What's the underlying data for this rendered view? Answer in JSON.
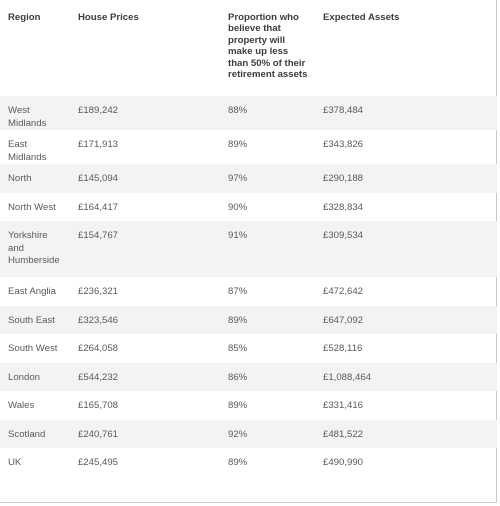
{
  "table": {
    "headers": [
      "Region",
      "House Prices",
      "Proportion who believe that property will make up less than 50% of their retirement assets",
      "Expected Assets"
    ],
    "rows": [
      [
        "West Midlands",
        "£189,242",
        "88%",
        "£378,484"
      ],
      [
        "East Midlands",
        "£171,913",
        "89%",
        "£343,826"
      ],
      [
        "North",
        "£145,094",
        "97%",
        "£290,188"
      ],
      [
        "North West",
        "£164,417",
        "90%",
        "£328,834"
      ],
      [
        "Yorkshire and Humberside",
        "£154,767",
        "91%",
        "£309,534"
      ],
      [
        "East Anglia",
        "£236,321",
        "87%",
        "£472,642"
      ],
      [
        "South East",
        "£323,546",
        "89%",
        "£647,092"
      ],
      [
        "South West",
        "£264,058",
        "85%",
        "£528,116"
      ],
      [
        "London",
        "£544,232",
        "86%",
        "£1,088,464"
      ],
      [
        "Wales",
        "£165,708",
        "89%",
        "£331,416"
      ],
      [
        "Scotland",
        "£240,761",
        "92%",
        "£481,522"
      ],
      [
        "UK",
        "£245,495",
        "89%",
        "£490,990"
      ]
    ]
  }
}
